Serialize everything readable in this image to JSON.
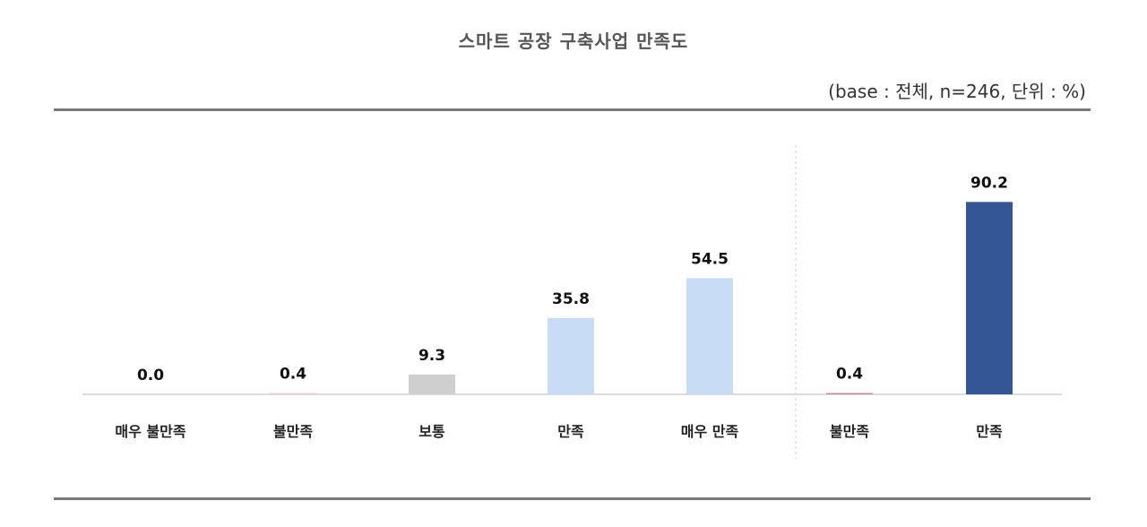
{
  "title": "스마트 공장 구축사업 만족도",
  "base_note": "(base : 전체, n=246, 단위 : %)",
  "chart_data": {
    "type": "bar",
    "title": "스마트 공장 구축사업 만족도",
    "categories": [
      "매우 불만족",
      "불만족",
      "보통",
      "만족",
      "매우 만족",
      "불만족",
      "만족"
    ],
    "values": [
      0.0,
      0.4,
      9.3,
      35.8,
      54.5,
      0.4,
      90.2
    ],
    "value_labels": [
      "0.0",
      "0.4",
      "9.3",
      "35.8",
      "54.5",
      "0.4",
      "90.2"
    ],
    "groups": [
      {
        "name": "",
        "range": [
          0,
          4
        ]
      },
      {
        "name": "",
        "range": [
          5,
          6
        ]
      }
    ],
    "colors": [
      "#e8a0b4",
      "#f0c8d4",
      "#cfcfcf",
      "#c9dcf6",
      "#c9dcf6",
      "#c48aa0",
      "#345694"
    ],
    "ylim": [
      0,
      100
    ],
    "grid": false,
    "legend": "none",
    "xlabel": "",
    "ylabel": ""
  }
}
